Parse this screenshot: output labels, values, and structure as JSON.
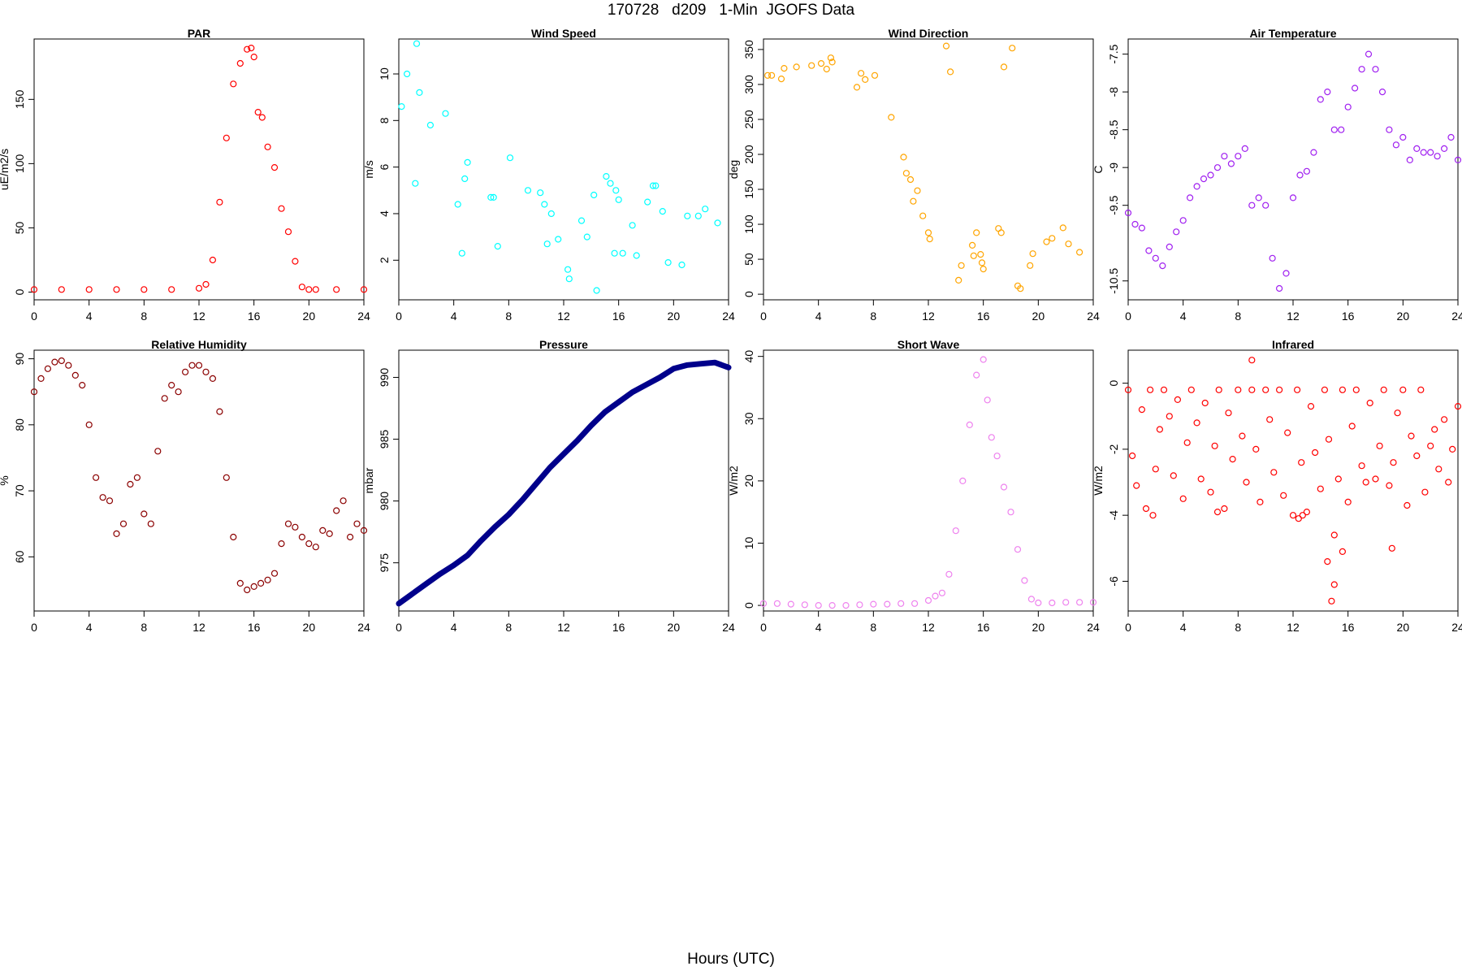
{
  "figure": {
    "title": "170728   d209   1-Min  JGOFS Data",
    "x_label": "Hours (UTC)"
  },
  "chart_data": [
    {
      "type": "scatter",
      "title": "PAR",
      "ylabel": "uE/m2/s",
      "color": "#ff0000",
      "xlim": [
        0,
        24
      ],
      "ylim": [
        -6,
        197
      ],
      "x_ticks": [
        0,
        4,
        8,
        12,
        16,
        20,
        24
      ],
      "y_ticks": [
        0,
        50,
        100,
        150
      ],
      "y_tick_labels_rotated": true,
      "x": [
        0,
        2,
        4,
        6,
        8,
        10,
        12,
        12.5,
        13,
        13.5,
        14,
        14.5,
        15,
        15.5,
        15.8,
        16,
        16.3,
        16.6,
        17,
        17.5,
        18,
        18.5,
        19,
        19.5,
        20,
        20.5,
        22,
        24
      ],
      "y": [
        2,
        2,
        2,
        2,
        2,
        2,
        3,
        6,
        25,
        70,
        120,
        162,
        178,
        189,
        190,
        183,
        140,
        136,
        113,
        97,
        65,
        47,
        24,
        4,
        2,
        2,
        2,
        2
      ]
    },
    {
      "type": "scatter",
      "title": "Wind Speed",
      "ylabel": "m/s",
      "color": "#00ffff",
      "xlim": [
        0,
        24
      ],
      "ylim": [
        0.3,
        11.5
      ],
      "x_ticks": [
        0,
        4,
        8,
        12,
        16,
        20,
        24
      ],
      "y_ticks": [
        2,
        4,
        6,
        8,
        10
      ],
      "y_tick_labels_rotated": true,
      "x": [
        0.2,
        0.6,
        1.2,
        1.3,
        1.5,
        2.3,
        3.4,
        4.3,
        4.6,
        4.8,
        5.0,
        6.7,
        6.9,
        7.2,
        8.1,
        9.4,
        10.3,
        10.6,
        10.8,
        11.1,
        11.6,
        12.3,
        12.4,
        13.3,
        13.7,
        14.2,
        14.4,
        15.1,
        15.4,
        15.7,
        15.8,
        16.0,
        16.3,
        17.0,
        17.3,
        18.1,
        18.5,
        18.7,
        19.2,
        19.6,
        20.6,
        21.0,
        21.8,
        22.3,
        23.2
      ],
      "y": [
        8.6,
        10.0,
        5.3,
        11.3,
        9.2,
        7.8,
        8.3,
        4.4,
        2.3,
        5.5,
        6.2,
        4.7,
        4.7,
        2.6,
        6.4,
        5.0,
        4.9,
        4.4,
        2.7,
        4.0,
        2.9,
        1.6,
        1.2,
        3.7,
        3.0,
        4.8,
        0.7,
        5.6,
        5.3,
        2.3,
        5.0,
        4.6,
        2.3,
        3.5,
        2.2,
        4.5,
        5.2,
        5.2,
        4.1,
        1.9,
        1.8,
        3.9,
        3.9,
        4.2,
        3.6
      ]
    },
    {
      "type": "scatter",
      "title": "Wind Direction",
      "ylabel": "deg",
      "color": "#ffa500",
      "xlim": [
        0,
        24
      ],
      "ylim": [
        -8,
        365
      ],
      "x_ticks": [
        0,
        4,
        8,
        12,
        16,
        20,
        24
      ],
      "y_ticks": [
        0,
        50,
        100,
        150,
        200,
        250,
        300,
        350
      ],
      "y_tick_labels_rotated": true,
      "x": [
        0.3,
        0.6,
        1.3,
        1.5,
        2.4,
        3.5,
        4.2,
        4.6,
        4.9,
        5.0,
        6.8,
        7.1,
        7.4,
        8.1,
        9.3,
        10.2,
        10.4,
        10.7,
        10.9,
        11.2,
        11.6,
        12.0,
        12.1,
        13.3,
        13.6,
        14.2,
        14.4,
        15.2,
        15.3,
        15.5,
        15.8,
        15.9,
        16.0,
        17.1,
        17.3,
        17.5,
        18.1,
        18.5,
        18.7,
        19.4,
        19.6,
        20.6,
        21.0,
        21.8,
        22.2,
        23.0
      ],
      "y": [
        313,
        313,
        308,
        323,
        325,
        327,
        330,
        322,
        338,
        332,
        296,
        316,
        307,
        313,
        253,
        196,
        173,
        164,
        133,
        148,
        112,
        88,
        79,
        355,
        318,
        20,
        41,
        70,
        55,
        88,
        57,
        45,
        36,
        94,
        88,
        325,
        352,
        12,
        8,
        41,
        58,
        75,
        80,
        95,
        72,
        60
      ]
    },
    {
      "type": "scatter",
      "title": "Air Temperature",
      "ylabel": "C",
      "color": "#a020f0",
      "xlim": [
        0,
        24
      ],
      "ylim": [
        -10.75,
        -7.3
      ],
      "x_ticks": [
        0,
        4,
        8,
        12,
        16,
        20,
        24
      ],
      "y_ticks": [
        -10.5,
        -9.5,
        -9.0,
        -8.5,
        -8.0,
        -7.5
      ],
      "y_tick_labels_rotated": true,
      "x": [
        0,
        0.5,
        1,
        1.5,
        2,
        2.5,
        3,
        3.5,
        4,
        4.5,
        5,
        5.5,
        6,
        6.5,
        7,
        7.5,
        8,
        8.5,
        9,
        9.5,
        10,
        10.5,
        11,
        11.5,
        12,
        12.5,
        13,
        13.5,
        14,
        14.5,
        15,
        15.5,
        16,
        16.5,
        17,
        17.5,
        18,
        18.5,
        19,
        19.5,
        20,
        20.5,
        21,
        21.5,
        22,
        22.5,
        23,
        23.5,
        24
      ],
      "y": [
        -9.6,
        -9.75,
        -9.8,
        -10.1,
        -10.2,
        -10.3,
        -10.05,
        -9.85,
        -9.7,
        -9.4,
        -9.25,
        -9.15,
        -9.1,
        -9.0,
        -8.85,
        -8.95,
        -8.85,
        -8.75,
        -9.5,
        -9.4,
        -9.5,
        -10.2,
        -10.6,
        -10.4,
        -9.4,
        -9.1,
        -9.05,
        -8.8,
        -8.1,
        -8.0,
        -8.5,
        -8.5,
        -8.2,
        -7.95,
        -7.7,
        -7.5,
        -7.7,
        -8.0,
        -8.5,
        -8.7,
        -8.6,
        -8.9,
        -8.75,
        -8.8,
        -8.8,
        -8.85,
        -8.75,
        -8.6,
        -8.9
      ]
    },
    {
      "type": "scatter",
      "title": "Relative Humidity",
      "ylabel": "%",
      "color": "#8b0000",
      "xlim": [
        0,
        24
      ],
      "ylim": [
        51.8,
        91.3
      ],
      "x_ticks": [
        0,
        4,
        8,
        12,
        16,
        20,
        24
      ],
      "y_ticks": [
        60,
        70,
        80,
        90
      ],
      "y_tick_labels_rotated": true,
      "x": [
        0,
        0.5,
        1,
        1.5,
        2,
        2.5,
        3,
        3.5,
        4,
        4.5,
        5,
        5.5,
        6,
        6.5,
        7,
        7.5,
        8,
        8.5,
        9,
        9.5,
        10,
        10.5,
        11,
        11.5,
        12,
        12.5,
        13,
        13.5,
        14,
        14.5,
        15,
        15.5,
        16,
        16.5,
        17,
        17.5,
        18,
        18.5,
        19,
        19.5,
        20,
        20.5,
        21,
        21.5,
        22,
        22.5,
        23,
        23.5,
        24
      ],
      "y": [
        85,
        87,
        88.5,
        89.5,
        89.7,
        89,
        87.5,
        86,
        80,
        72,
        69,
        68.5,
        63.5,
        65,
        71,
        72,
        66.5,
        65,
        76,
        84,
        86,
        85,
        88,
        89,
        89,
        88,
        87,
        82,
        72,
        63,
        56,
        55,
        55.5,
        56,
        56.5,
        57.5,
        62,
        65,
        64.5,
        63,
        62,
        61.5,
        64,
        63.5,
        67,
        68.5,
        63,
        65,
        64
      ]
    },
    {
      "type": "line",
      "title": "Pressure",
      "ylabel": "mbar",
      "color": "#00008b",
      "xlim": [
        0,
        24
      ],
      "ylim": [
        971.1,
        992.2
      ],
      "x_ticks": [
        0,
        4,
        8,
        12,
        16,
        20,
        24
      ],
      "y_ticks": [
        975,
        980,
        985,
        990
      ],
      "y_tick_labels_rotated": true,
      "x": [
        0,
        1,
        2,
        3,
        4,
        5,
        6,
        7,
        8,
        9,
        10,
        11,
        12,
        13,
        14,
        15,
        16,
        17,
        18,
        19,
        20,
        21,
        22,
        23,
        24
      ],
      "y": [
        971.7,
        972.5,
        973.3,
        974.1,
        974.8,
        975.6,
        976.8,
        977.9,
        978.9,
        980.1,
        981.4,
        982.7,
        983.8,
        984.9,
        986.1,
        987.2,
        988.0,
        988.8,
        989.4,
        990.0,
        990.7,
        991.0,
        991.1,
        991.2,
        990.8
      ]
    },
    {
      "type": "scatter",
      "title": "Short Wave",
      "ylabel": "W/m2",
      "color": "#ee82ee",
      "xlim": [
        0,
        24
      ],
      "ylim": [
        -0.9,
        41
      ],
      "x_ticks": [
        0,
        4,
        8,
        12,
        16,
        20,
        24
      ],
      "y_ticks": [
        0,
        10,
        20,
        30,
        40
      ],
      "y_tick_labels_rotated": true,
      "x": [
        0,
        1,
        2,
        3,
        4,
        5,
        6,
        7,
        8,
        9,
        10,
        11,
        12,
        12.5,
        13,
        13.5,
        14,
        14.5,
        15,
        15.5,
        16,
        16.3,
        16.6,
        17,
        17.5,
        18,
        18.5,
        19,
        19.5,
        20,
        21,
        22,
        23,
        24
      ],
      "y": [
        0.3,
        0.3,
        0.2,
        0.1,
        0,
        0,
        0,
        0.1,
        0.2,
        0.2,
        0.3,
        0.3,
        0.8,
        1.5,
        2.0,
        5.0,
        12.0,
        20.0,
        29.0,
        37.0,
        39.5,
        33.0,
        27.0,
        24.0,
        19.0,
        15.0,
        9.0,
        4.0,
        1.0,
        0.4,
        0.4,
        0.5,
        0.5,
        0.5
      ]
    },
    {
      "type": "scatter",
      "title": "Infrared",
      "ylabel": "W/m2",
      "color": "#ff0000",
      "xlim": [
        0,
        24
      ],
      "ylim": [
        -6.9,
        1.0
      ],
      "x_ticks": [
        0,
        4,
        8,
        12,
        16,
        20,
        24
      ],
      "y_ticks": [
        -6,
        -4,
        -2,
        0
      ],
      "y_tick_labels_rotated": true,
      "x": [
        0,
        0.3,
        0.6,
        1.0,
        1.3,
        1.6,
        2.0,
        2.3,
        2.6,
        3.0,
        3.3,
        3.6,
        4.0,
        4.3,
        4.6,
        5.0,
        5.3,
        5.6,
        6.0,
        6.3,
        6.6,
        7.0,
        7.3,
        7.6,
        8.0,
        8.3,
        8.6,
        9.0,
        9.3,
        9.6,
        10.0,
        10.3,
        10.6,
        11.0,
        11.3,
        11.6,
        12.0,
        12.3,
        12.6,
        13.0,
        13.3,
        13.6,
        14.0,
        14.3,
        14.6,
        15.0,
        15.3,
        15.6,
        16.0,
        16.3,
        16.6,
        17.0,
        17.3,
        17.6,
        18.0,
        18.3,
        18.6,
        19.0,
        19.3,
        19.6,
        20.0,
        20.3,
        20.6,
        21.0,
        21.3,
        21.6,
        22.0,
        22.3,
        22.6,
        23.0,
        23.3,
        23.6,
        24.0,
        9.0,
        14.8,
        15.0,
        14.5,
        15.6,
        19.2,
        1.8,
        6.5,
        12.4,
        12.7
      ],
      "y": [
        -0.2,
        -2.2,
        -3.1,
        -0.8,
        -3.8,
        -0.2,
        -2.6,
        -1.4,
        -0.2,
        -1.0,
        -2.8,
        -0.5,
        -3.5,
        -1.8,
        -0.2,
        -1.2,
        -2.9,
        -0.6,
        -3.3,
        -1.9,
        -0.2,
        -3.8,
        -0.9,
        -2.3,
        -0.2,
        -1.6,
        -3.0,
        -0.2,
        -2.0,
        -3.6,
        -0.2,
        -1.1,
        -2.7,
        -0.2,
        -3.4,
        -1.5,
        -4.0,
        -0.2,
        -2.4,
        -3.9,
        -0.7,
        -2.1,
        -3.2,
        -0.2,
        -1.7,
        -4.6,
        -2.9,
        -0.2,
        -3.6,
        -1.3,
        -0.2,
        -2.5,
        -3.0,
        -0.6,
        -2.9,
        -1.9,
        -0.2,
        -3.1,
        -2.4,
        -0.9,
        -0.2,
        -3.7,
        -1.6,
        -2.2,
        -0.2,
        -3.3,
        -1.9,
        -1.4,
        -2.6,
        -1.1,
        -3.0,
        -2.0,
        -0.7,
        0.7,
        -6.6,
        -6.1,
        -5.4,
        -5.1,
        -5.0,
        -4.0,
        -3.9,
        -4.1,
        -4.0
      ]
    }
  ]
}
